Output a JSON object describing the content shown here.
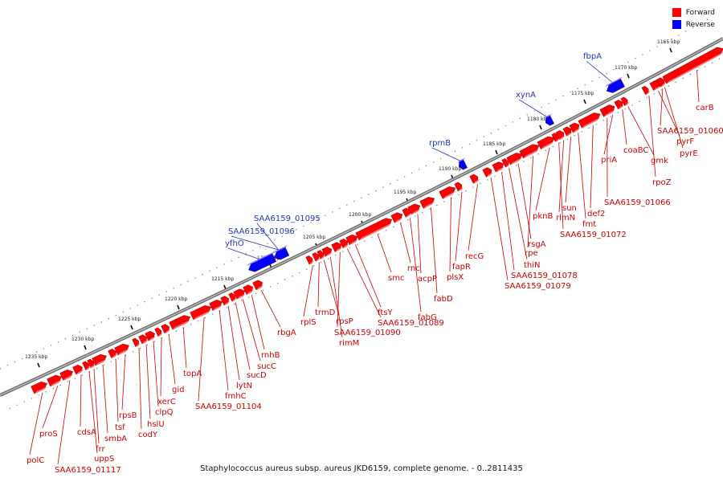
{
  "caption": "Staphylococcus aureus subsp. aureus JKD6159, complete genome. - 0..2811435",
  "legend": [
    {
      "label": "Forward",
      "color": "#ff0000"
    },
    {
      "label": "Reverse",
      "color": "#0000ff"
    }
  ],
  "colors": {
    "forward": "#ff0000",
    "reverse": "#0000ff",
    "forward_label": "#cc0000",
    "reverse_label": "#2233bb",
    "backbone": "#888888"
  },
  "scale_labels": [
    "1165 kbp",
    "1170 kbp",
    "1175 kbp",
    "1180 kbp",
    "1185 kbp",
    "1190 kbp",
    "1195 kbp",
    "1200 kbp",
    "1205 kbp",
    "1210 kbp",
    "1215 kbp",
    "1220 kbp",
    "1225 kbp",
    "1230 kbp",
    "1235 kbp"
  ],
  "reverse_genes": [
    "fbpA",
    "xynA",
    "rpmB",
    "SAA6159_01095",
    "SAA6159_01096",
    "yfhO"
  ],
  "forward_genes": [
    "carB",
    "SAA6159_01060",
    "pyrF",
    "pyrE",
    "rpoZ",
    "gmk",
    "coaBC",
    "priA",
    "SAA6159_01066",
    "def2",
    "fmt",
    "sun",
    "rlmN",
    "SAA6159_01072",
    "pknB",
    "rpe",
    "rsgA",
    "thiN",
    "SAA6159_01078",
    "SAA6159_01079",
    "recG",
    "fapR",
    "plsX",
    "fabD",
    "acpP",
    "fabG",
    "rnc",
    "smc",
    "ftsY",
    "SAA6159_01089",
    "SAA6159_01090",
    "rimM",
    "rpsP",
    "trmD",
    "rplS",
    "rbgA",
    "rnhB",
    "sucC",
    "sucD",
    "lytN",
    "fmhC",
    "SAA6159_01104",
    "topA",
    "gid",
    "xerC",
    "clpQ",
    "hslU",
    "codY",
    "rpsB",
    "tsf",
    "smbA",
    "frr",
    "uppS",
    "cdsA",
    "SAA6159_01117",
    "proS",
    "polC"
  ]
}
